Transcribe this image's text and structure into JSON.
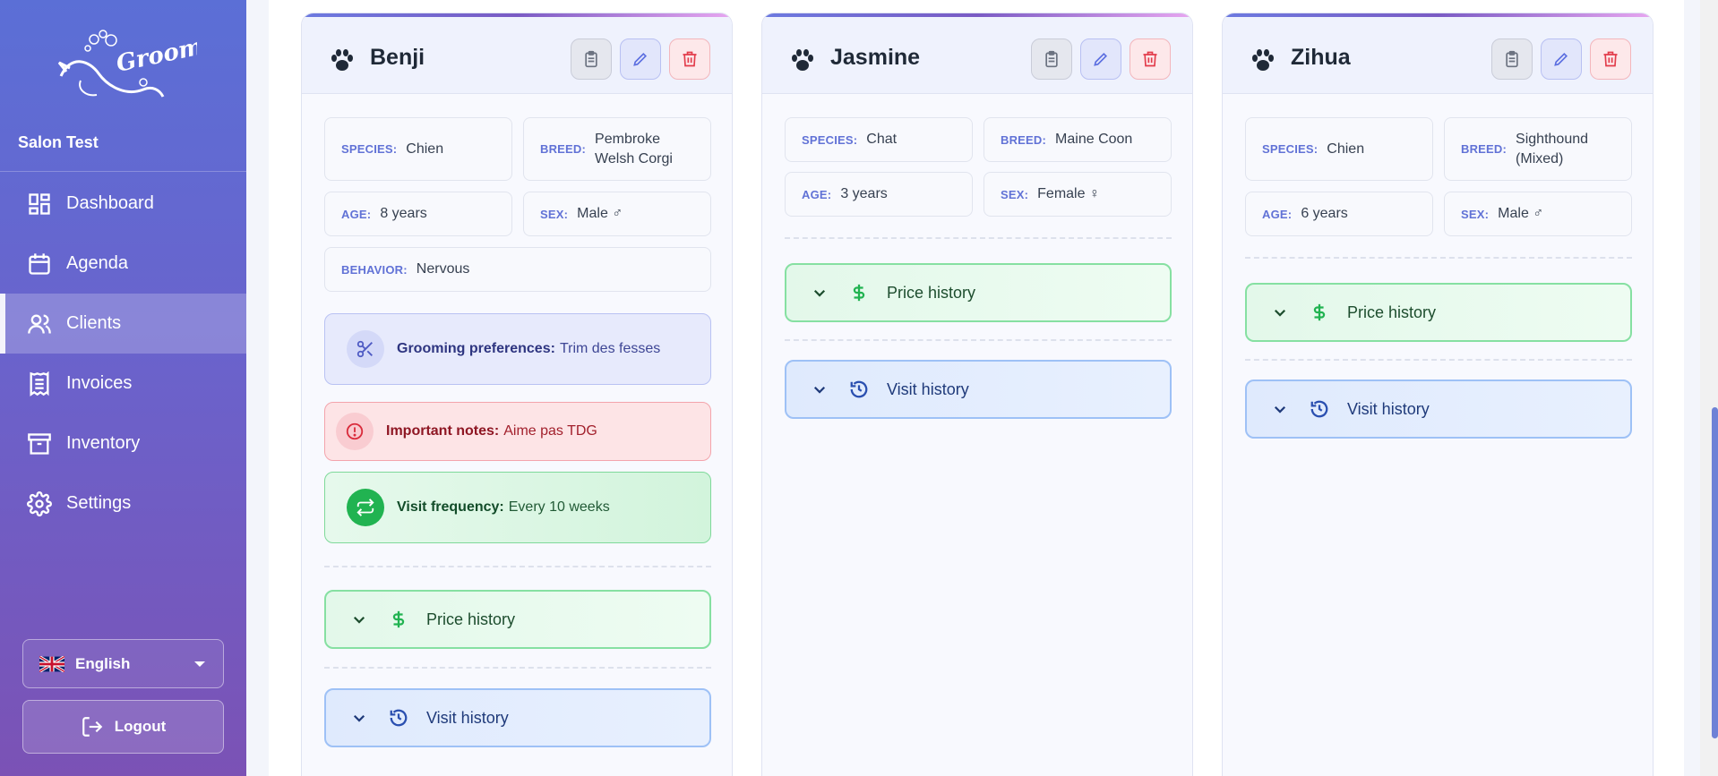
{
  "sidebar": {
    "logo_text": "Groomi",
    "salon_name": "Salon Test",
    "nav": [
      {
        "label": "Dashboard",
        "icon": "dashboard-icon",
        "active": false
      },
      {
        "label": "Agenda",
        "icon": "calendar-icon",
        "active": false
      },
      {
        "label": "Clients",
        "icon": "users-icon",
        "active": true
      },
      {
        "label": "Invoices",
        "icon": "invoice-icon",
        "active": false
      },
      {
        "label": "Inventory",
        "icon": "archive-icon",
        "active": false
      },
      {
        "label": "Settings",
        "icon": "gear-icon",
        "active": false
      }
    ],
    "language": "English",
    "logout": "Logout"
  },
  "labels": {
    "species": "SPECIES:",
    "breed": "BREED:",
    "age": "AGE:",
    "sex": "SEX:",
    "behavior": "BEHAVIOR:",
    "grooming": "Grooming preferences:",
    "notes": "Important notes:",
    "frequency": "Visit frequency:",
    "price_history": "Price history",
    "visit_history": "Visit history"
  },
  "pets": [
    {
      "name": "Benji",
      "species": "Chien",
      "breed": "Pembroke Welsh Corgi",
      "age": "8 years",
      "sex": "Male ♂",
      "behavior": "Nervous",
      "grooming_preferences": "Trim des fesses",
      "important_notes": "Aime pas TDG",
      "visit_frequency": "Every 10 weeks"
    },
    {
      "name": "Jasmine",
      "species": "Chat",
      "breed": "Maine Coon",
      "age": "3 years",
      "sex": "Female ♀"
    },
    {
      "name": "Zihua",
      "species": "Chien",
      "breed": "Sighthound (Mixed)",
      "age": "6 years",
      "sex": "Male ♂"
    }
  ],
  "colors": {
    "accent": "#6172d6",
    "price_green": "#21b351",
    "visit_blue": "#2a4fb0",
    "danger": "#e23b4a"
  }
}
